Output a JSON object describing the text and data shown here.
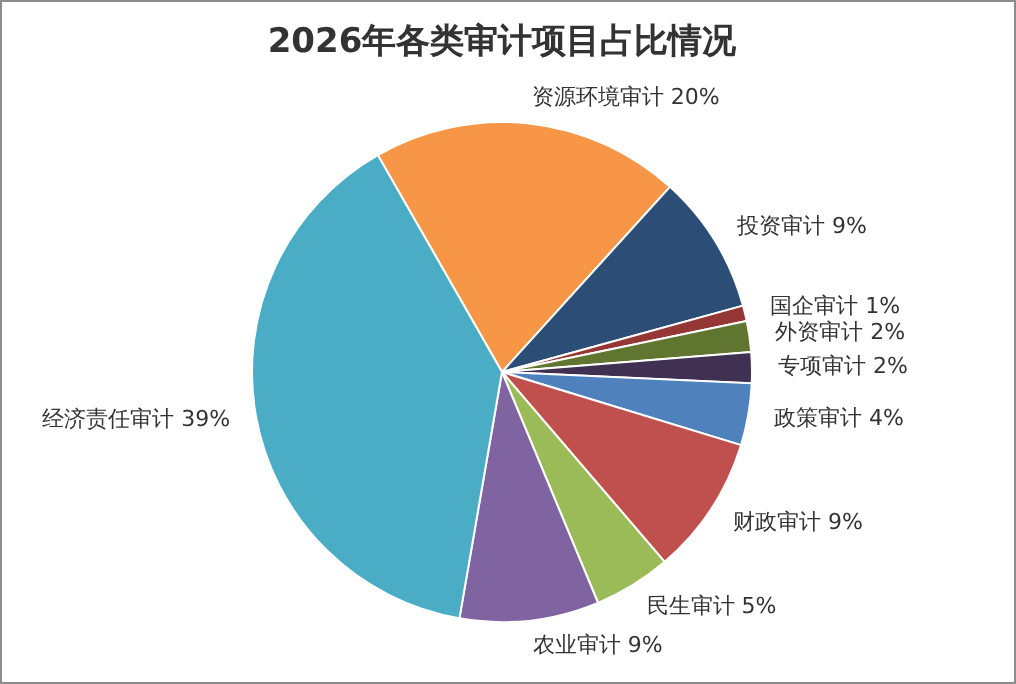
{
  "chart_data": {
    "type": "pie",
    "title": "2026年各类审计项目占比情况",
    "categories": [
      "资源环境审计",
      "投资审计",
      "国企审计",
      "外资审计",
      "专项审计",
      "政策审计",
      "财政审计",
      "民生审计",
      "农业审计",
      "经济责任审计"
    ],
    "values": [
      20,
      9,
      1,
      2,
      2,
      4,
      9,
      5,
      9,
      39
    ],
    "value_labels": [
      "20%",
      "9%",
      "1%",
      "2%",
      "2%",
      "4%",
      "9%",
      "5%",
      "9%",
      "39%"
    ],
    "colors": [
      "#f79646",
      "#2c4d75",
      "#953735",
      "#5f7530",
      "#403152",
      "#4f81bd",
      "#c0504d",
      "#9bbb59",
      "#8064a2",
      "#4bacc6"
    ]
  }
}
